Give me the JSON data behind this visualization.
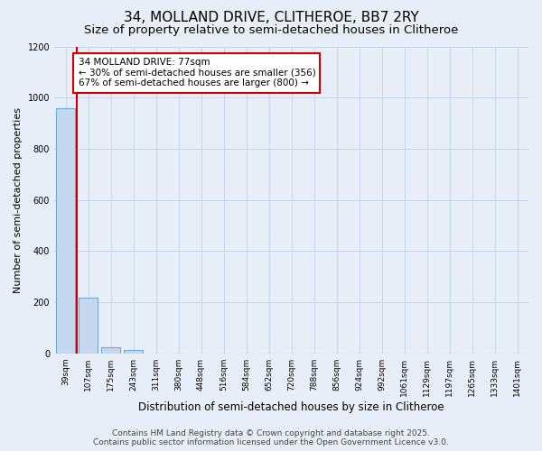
{
  "title": "34, MOLLAND DRIVE, CLITHEROE, BB7 2RY",
  "subtitle": "Size of property relative to semi-detached houses in Clitheroe",
  "xlabel": "Distribution of semi-detached houses by size in Clitheroe",
  "ylabel": "Number of semi-detached properties",
  "bar_color": "#c5d8f0",
  "bar_edge_color": "#6aaad4",
  "background_color": "#e8eef8",
  "grid_color": "#c8d4e8",
  "categories": [
    "39sqm",
    "107sqm",
    "175sqm",
    "243sqm",
    "311sqm",
    "380sqm",
    "448sqm",
    "516sqm",
    "584sqm",
    "652sqm",
    "720sqm",
    "788sqm",
    "856sqm",
    "924sqm",
    "992sqm",
    "1061sqm",
    "1129sqm",
    "1197sqm",
    "1265sqm",
    "1333sqm",
    "1401sqm"
  ],
  "values": [
    960,
    220,
    25,
    15,
    0,
    0,
    0,
    0,
    0,
    0,
    0,
    0,
    0,
    0,
    0,
    0,
    0,
    0,
    0,
    0,
    0
  ],
  "ylim": [
    0,
    1200
  ],
  "yticks": [
    0,
    200,
    400,
    600,
    800,
    1000,
    1200
  ],
  "property_line_x": 0.5,
  "property_line_color": "#cc0000",
  "annotation_text": "34 MOLLAND DRIVE: 77sqm\n← 30% of semi-detached houses are smaller (356)\n67% of semi-detached houses are larger (800) →",
  "annotation_box_color": "white",
  "annotation_edge_color": "#cc0000",
  "footer_text": "Contains HM Land Registry data © Crown copyright and database right 2025.\nContains public sector information licensed under the Open Government Licence v3.0.",
  "title_fontsize": 11,
  "subtitle_fontsize": 9.5,
  "annotation_fontsize": 7.5,
  "footer_fontsize": 6.5,
  "ylabel_fontsize": 8,
  "xlabel_fontsize": 8.5,
  "tick_fontsize": 6.5
}
